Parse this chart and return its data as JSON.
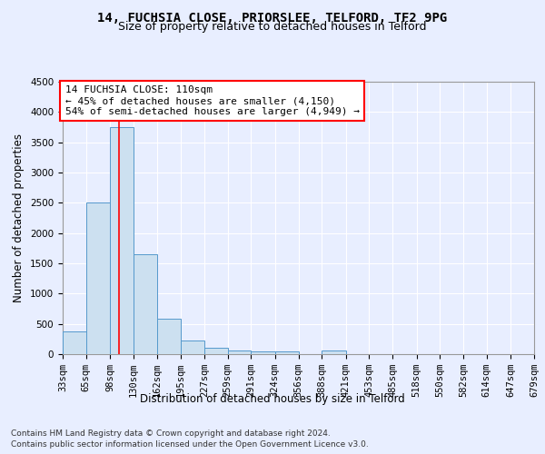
{
  "title": "14, FUCHSIA CLOSE, PRIORSLEE, TELFORD, TF2 9PG",
  "subtitle": "Size of property relative to detached houses in Telford",
  "xlabel": "Distribution of detached houses by size in Telford",
  "ylabel": "Number of detached properties",
  "footer_line1": "Contains HM Land Registry data © Crown copyright and database right 2024.",
  "footer_line2": "Contains public sector information licensed under the Open Government Licence v3.0.",
  "annotation_line1": "14 FUCHSIA CLOSE: 110sqm",
  "annotation_line2": "← 45% of detached houses are smaller (4,150)",
  "annotation_line3": "54% of semi-detached houses are larger (4,949) →",
  "bar_color": "#cce0f0",
  "bar_edge_color": "#5599cc",
  "red_line_x": 110,
  "ylim": [
    0,
    4500
  ],
  "yticks": [
    0,
    500,
    1000,
    1500,
    2000,
    2500,
    3000,
    3500,
    4000,
    4500
  ],
  "bin_edges": [
    33,
    65,
    98,
    130,
    162,
    195,
    227,
    259,
    291,
    324,
    356,
    388,
    421,
    453,
    485,
    518,
    550,
    582,
    614,
    647,
    679
  ],
  "bin_heights": [
    370,
    2500,
    3750,
    1650,
    590,
    225,
    110,
    65,
    50,
    50,
    0,
    65,
    0,
    0,
    0,
    0,
    0,
    0,
    0,
    0
  ],
  "tick_labels": [
    "33sqm",
    "65sqm",
    "98sqm",
    "130sqm",
    "162sqm",
    "195sqm",
    "227sqm",
    "259sqm",
    "291sqm",
    "324sqm",
    "356sqm",
    "388sqm",
    "421sqm",
    "453sqm",
    "485sqm",
    "518sqm",
    "550sqm",
    "582sqm",
    "614sqm",
    "647sqm",
    "679sqm"
  ],
  "background_color": "#e8eeff",
  "grid_color": "#ffffff",
  "title_fontsize": 10,
  "subtitle_fontsize": 9,
  "axis_label_fontsize": 8.5,
  "tick_fontsize": 7.5,
  "annotation_fontsize": 8,
  "footer_fontsize": 6.5
}
